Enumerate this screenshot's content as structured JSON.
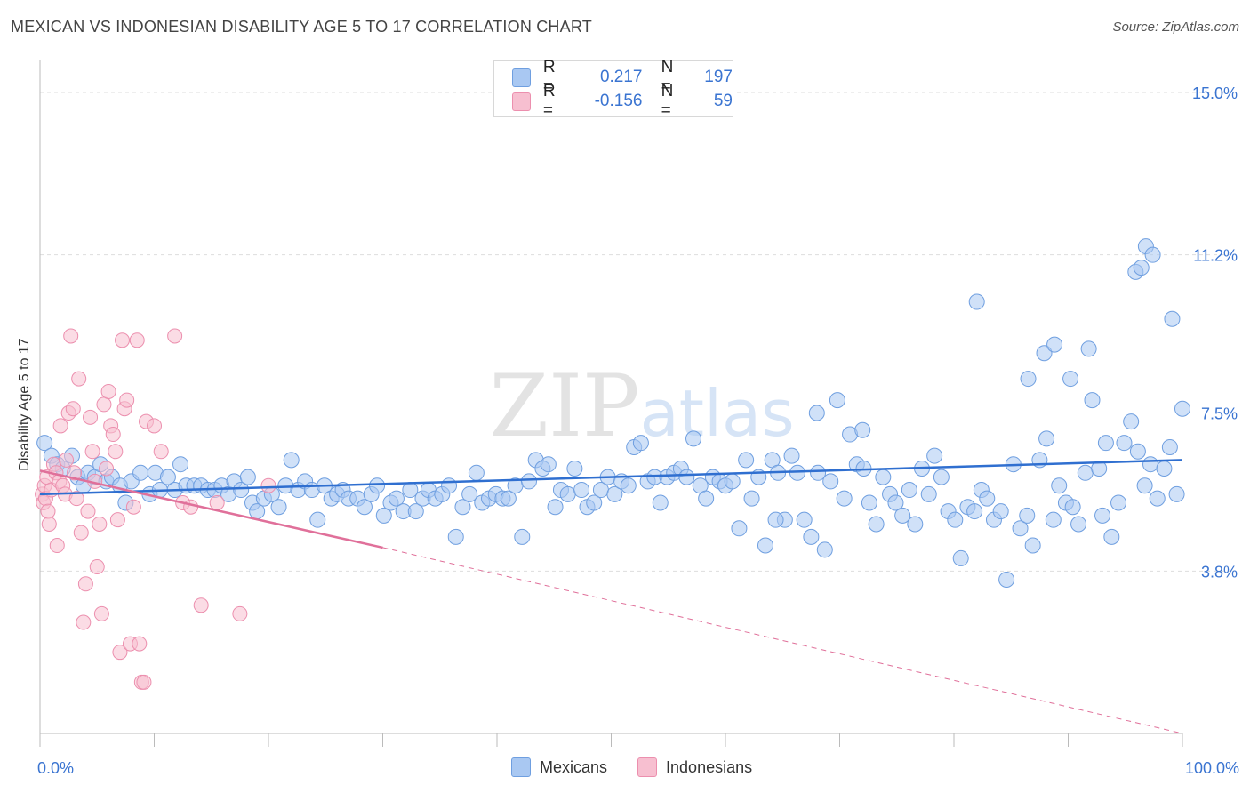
{
  "title": "MEXICAN VS INDONESIAN DISABILITY AGE 5 TO 17 CORRELATION CHART",
  "source": "Source: ZipAtlas.com",
  "colors": {
    "mexicans_fill": "#a9c8f2",
    "mexicans_stroke": "#6f9fe0",
    "mexicans_line": "#2f6fd0",
    "indonesians_fill": "#f7bfd0",
    "indonesians_stroke": "#ec8fae",
    "indonesians_line": "#e0709a",
    "axis_text": "#3a74d1",
    "grid": "#dddddd"
  },
  "legend": {
    "rows": [
      {
        "r_label": "R =",
        "r_value": "0.217",
        "n_label": "N =",
        "n_value": "197"
      },
      {
        "r_label": "R =",
        "r_value": "-0.156",
        "n_label": "N =",
        "n_value": "59"
      }
    ]
  },
  "bottom_legend": {
    "mexicans": "Mexicans",
    "indonesians": "Indonesians"
  },
  "chart_data": {
    "type": "scatter",
    "title": "MEXICAN VS INDONESIAN DISABILITY AGE 5 TO 17 CORRELATION CHART",
    "xlabel": "",
    "ylabel": "Disability Age 5 to 17",
    "xlim": [
      0,
      100
    ],
    "ylim": [
      0,
      15.5
    ],
    "x_tick_labels": [
      "0.0%",
      "100.0%"
    ],
    "y_ticks": [
      3.8,
      7.5,
      11.2,
      15.0
    ],
    "y_tick_labels": [
      "3.8%",
      "7.5%",
      "11.2%",
      "15.0%"
    ],
    "watermark": "ZIPatlas",
    "series": [
      {
        "name": "Mexicans",
        "r": 0.217,
        "n": 197,
        "trend": {
          "x0": 0,
          "y0": 5.6,
          "x1": 100,
          "y1": 6.4,
          "dashed_to": null
        },
        "points": [
          [
            0.4,
            6.8
          ],
          [
            1.0,
            6.5
          ],
          [
            1.5,
            6.3
          ],
          [
            2.0,
            6.2
          ],
          [
            2.8,
            6.5
          ],
          [
            3.3,
            6.0
          ],
          [
            3.8,
            5.8
          ],
          [
            4.2,
            6.1
          ],
          [
            4.8,
            6.0
          ],
          [
            5.3,
            6.3
          ],
          [
            5.8,
            5.9
          ],
          [
            6.3,
            6.0
          ],
          [
            7.0,
            5.8
          ],
          [
            7.5,
            5.4
          ],
          [
            8.0,
            5.9
          ],
          [
            8.8,
            6.1
          ],
          [
            9.6,
            5.6
          ],
          [
            10.1,
            6.1
          ],
          [
            10.5,
            5.7
          ],
          [
            11.2,
            6.0
          ],
          [
            11.8,
            5.7
          ],
          [
            12.3,
            6.3
          ],
          [
            12.8,
            5.8
          ],
          [
            13.5,
            5.8
          ],
          [
            14.1,
            5.8
          ],
          [
            14.7,
            5.7
          ],
          [
            15.3,
            5.7
          ],
          [
            15.9,
            5.8
          ],
          [
            16.5,
            5.6
          ],
          [
            17.0,
            5.9
          ],
          [
            17.6,
            5.7
          ],
          [
            18.2,
            6.0
          ],
          [
            18.6,
            5.4
          ],
          [
            19.0,
            5.2
          ],
          [
            19.6,
            5.5
          ],
          [
            20.3,
            5.6
          ],
          [
            20.9,
            5.3
          ],
          [
            21.5,
            5.8
          ],
          [
            22.0,
            6.4
          ],
          [
            22.6,
            5.7
          ],
          [
            23.2,
            5.9
          ],
          [
            23.8,
            5.7
          ],
          [
            24.3,
            5.0
          ],
          [
            24.9,
            5.8
          ],
          [
            25.5,
            5.5
          ],
          [
            26.0,
            5.6
          ],
          [
            26.5,
            5.7
          ],
          [
            27.0,
            5.5
          ],
          [
            27.8,
            5.5
          ],
          [
            28.4,
            5.3
          ],
          [
            29.0,
            5.6
          ],
          [
            29.5,
            5.8
          ],
          [
            30.1,
            5.1
          ],
          [
            30.7,
            5.4
          ],
          [
            31.2,
            5.5
          ],
          [
            31.8,
            5.2
          ],
          [
            32.4,
            5.7
          ],
          [
            32.9,
            5.2
          ],
          [
            33.5,
            5.5
          ],
          [
            34.0,
            5.7
          ],
          [
            34.6,
            5.5
          ],
          [
            35.2,
            5.6
          ],
          [
            35.8,
            5.8
          ],
          [
            36.4,
            4.6
          ],
          [
            37.0,
            5.3
          ],
          [
            37.6,
            5.6
          ],
          [
            38.2,
            6.1
          ],
          [
            38.7,
            5.4
          ],
          [
            39.3,
            5.5
          ],
          [
            39.9,
            5.6
          ],
          [
            40.5,
            5.5
          ],
          [
            41.0,
            5.5
          ],
          [
            41.6,
            5.8
          ],
          [
            42.2,
            4.6
          ],
          [
            42.8,
            5.9
          ],
          [
            43.4,
            6.4
          ],
          [
            44.0,
            6.2
          ],
          [
            44.5,
            6.3
          ],
          [
            45.1,
            5.3
          ],
          [
            45.6,
            5.7
          ],
          [
            46.2,
            5.6
          ],
          [
            46.8,
            6.2
          ],
          [
            47.4,
            5.7
          ],
          [
            47.9,
            5.3
          ],
          [
            48.5,
            5.4
          ],
          [
            49.1,
            5.7
          ],
          [
            49.7,
            6.0
          ],
          [
            50.3,
            5.6
          ],
          [
            50.9,
            5.9
          ],
          [
            51.5,
            5.8
          ],
          [
            52.0,
            6.7
          ],
          [
            52.6,
            6.8
          ],
          [
            53.2,
            5.9
          ],
          [
            53.8,
            6.0
          ],
          [
            54.3,
            5.4
          ],
          [
            54.9,
            6.0
          ],
          [
            55.5,
            6.1
          ],
          [
            56.1,
            6.2
          ],
          [
            56.6,
            6.0
          ],
          [
            57.2,
            6.9
          ],
          [
            57.8,
            5.8
          ],
          [
            58.3,
            5.5
          ],
          [
            58.9,
            6.0
          ],
          [
            59.5,
            5.9
          ],
          [
            60.0,
            5.8
          ],
          [
            60.6,
            5.9
          ],
          [
            61.2,
            4.8
          ],
          [
            61.8,
            6.4
          ],
          [
            62.3,
            5.5
          ],
          [
            62.9,
            6.0
          ],
          [
            63.5,
            4.4
          ],
          [
            64.1,
            6.4
          ],
          [
            64.6,
            6.1
          ],
          [
            65.2,
            5.0
          ],
          [
            65.8,
            6.5
          ],
          [
            66.3,
            6.1
          ],
          [
            66.9,
            5.0
          ],
          [
            67.5,
            4.6
          ],
          [
            68.1,
            6.1
          ],
          [
            68.7,
            4.3
          ],
          [
            69.2,
            5.9
          ],
          [
            69.8,
            7.8
          ],
          [
            70.4,
            5.5
          ],
          [
            70.9,
            7.0
          ],
          [
            71.5,
            6.3
          ],
          [
            72.1,
            6.2
          ],
          [
            72.6,
            5.4
          ],
          [
            73.2,
            4.9
          ],
          [
            73.8,
            6.0
          ],
          [
            74.4,
            5.6
          ],
          [
            74.9,
            5.4
          ],
          [
            75.5,
            5.1
          ],
          [
            76.1,
            5.7
          ],
          [
            76.6,
            4.9
          ],
          [
            77.2,
            6.2
          ],
          [
            77.8,
            5.6
          ],
          [
            78.3,
            6.5
          ],
          [
            78.9,
            6.0
          ],
          [
            79.5,
            5.2
          ],
          [
            80.1,
            5.0
          ],
          [
            80.6,
            4.1
          ],
          [
            81.2,
            5.3
          ],
          [
            81.8,
            5.2
          ],
          [
            82.4,
            5.7
          ],
          [
            82.9,
            5.5
          ],
          [
            83.5,
            5.0
          ],
          [
            84.1,
            5.2
          ],
          [
            84.6,
            3.6
          ],
          [
            85.2,
            6.3
          ],
          [
            85.8,
            4.8
          ],
          [
            86.4,
            5.1
          ],
          [
            86.9,
            4.4
          ],
          [
            87.5,
            6.4
          ],
          [
            88.1,
            6.9
          ],
          [
            88.7,
            5.0
          ],
          [
            89.2,
            5.8
          ],
          [
            89.8,
            5.4
          ],
          [
            90.4,
            5.3
          ],
          [
            90.9,
            4.9
          ],
          [
            91.5,
            6.1
          ],
          [
            92.1,
            7.8
          ],
          [
            92.7,
            6.2
          ],
          [
            93.3,
            6.8
          ],
          [
            93.8,
            4.6
          ],
          [
            94.4,
            5.4
          ],
          [
            94.9,
            6.8
          ],
          [
            95.5,
            7.3
          ],
          [
            96.1,
            6.6
          ],
          [
            96.7,
            5.8
          ],
          [
            97.2,
            6.3
          ],
          [
            97.8,
            5.5
          ],
          [
            98.4,
            6.2
          ],
          [
            98.9,
            6.7
          ],
          [
            99.5,
            5.6
          ],
          [
            82.0,
            10.1
          ],
          [
            86.5,
            8.3
          ],
          [
            87.9,
            8.9
          ],
          [
            88.8,
            9.1
          ],
          [
            90.2,
            8.3
          ],
          [
            91.8,
            9.0
          ],
          [
            95.9,
            10.8
          ],
          [
            96.4,
            10.9
          ],
          [
            96.8,
            11.4
          ],
          [
            97.4,
            11.2
          ],
          [
            99.1,
            9.7
          ],
          [
            100.0,
            7.6
          ],
          [
            93.0,
            5.1
          ],
          [
            68.0,
            7.5
          ],
          [
            72.0,
            7.1
          ],
          [
            64.4,
            5.0
          ]
        ]
      },
      {
        "name": "Indonesians",
        "r": -0.156,
        "n": 59,
        "trend": {
          "x0": 0,
          "y0": 6.15,
          "x1": 30,
          "y1": 4.35,
          "dashed_to": {
            "x": 100,
            "y": 0.0
          }
        },
        "points": [
          [
            0.2,
            5.6
          ],
          [
            0.3,
            5.4
          ],
          [
            0.4,
            5.8
          ],
          [
            0.5,
            5.5
          ],
          [
            0.6,
            6.0
          ],
          [
            0.7,
            5.2
          ],
          [
            0.8,
            4.9
          ],
          [
            1.0,
            5.7
          ],
          [
            1.2,
            6.3
          ],
          [
            1.4,
            6.1
          ],
          [
            1.5,
            4.4
          ],
          [
            1.7,
            5.9
          ],
          [
            1.8,
            7.2
          ],
          [
            2.0,
            5.8
          ],
          [
            2.2,
            5.6
          ],
          [
            2.3,
            6.4
          ],
          [
            2.5,
            7.5
          ],
          [
            2.7,
            9.3
          ],
          [
            2.9,
            7.6
          ],
          [
            3.0,
            6.1
          ],
          [
            3.2,
            5.5
          ],
          [
            3.4,
            8.3
          ],
          [
            3.6,
            4.7
          ],
          [
            3.8,
            2.6
          ],
          [
            4.0,
            3.5
          ],
          [
            4.2,
            5.2
          ],
          [
            4.4,
            7.4
          ],
          [
            4.6,
            6.6
          ],
          [
            4.8,
            5.9
          ],
          [
            5.0,
            3.9
          ],
          [
            5.2,
            4.9
          ],
          [
            5.4,
            2.8
          ],
          [
            5.6,
            7.7
          ],
          [
            5.8,
            6.2
          ],
          [
            6.0,
            8.0
          ],
          [
            6.2,
            7.2
          ],
          [
            6.4,
            7.0
          ],
          [
            6.6,
            6.6
          ],
          [
            6.8,
            5.0
          ],
          [
            7.0,
            1.9
          ],
          [
            7.2,
            9.2
          ],
          [
            7.4,
            7.6
          ],
          [
            7.6,
            7.8
          ],
          [
            7.9,
            2.1
          ],
          [
            8.2,
            5.3
          ],
          [
            8.5,
            9.2
          ],
          [
            8.7,
            2.1
          ],
          [
            8.9,
            1.2
          ],
          [
            9.1,
            1.2
          ],
          [
            9.3,
            7.3
          ],
          [
            10.0,
            7.2
          ],
          [
            10.6,
            6.6
          ],
          [
            11.8,
            9.3
          ],
          [
            12.5,
            5.4
          ],
          [
            13.2,
            5.3
          ],
          [
            14.1,
            3.0
          ],
          [
            15.5,
            5.4
          ],
          [
            17.5,
            2.8
          ],
          [
            20.0,
            5.8
          ]
        ]
      }
    ]
  }
}
